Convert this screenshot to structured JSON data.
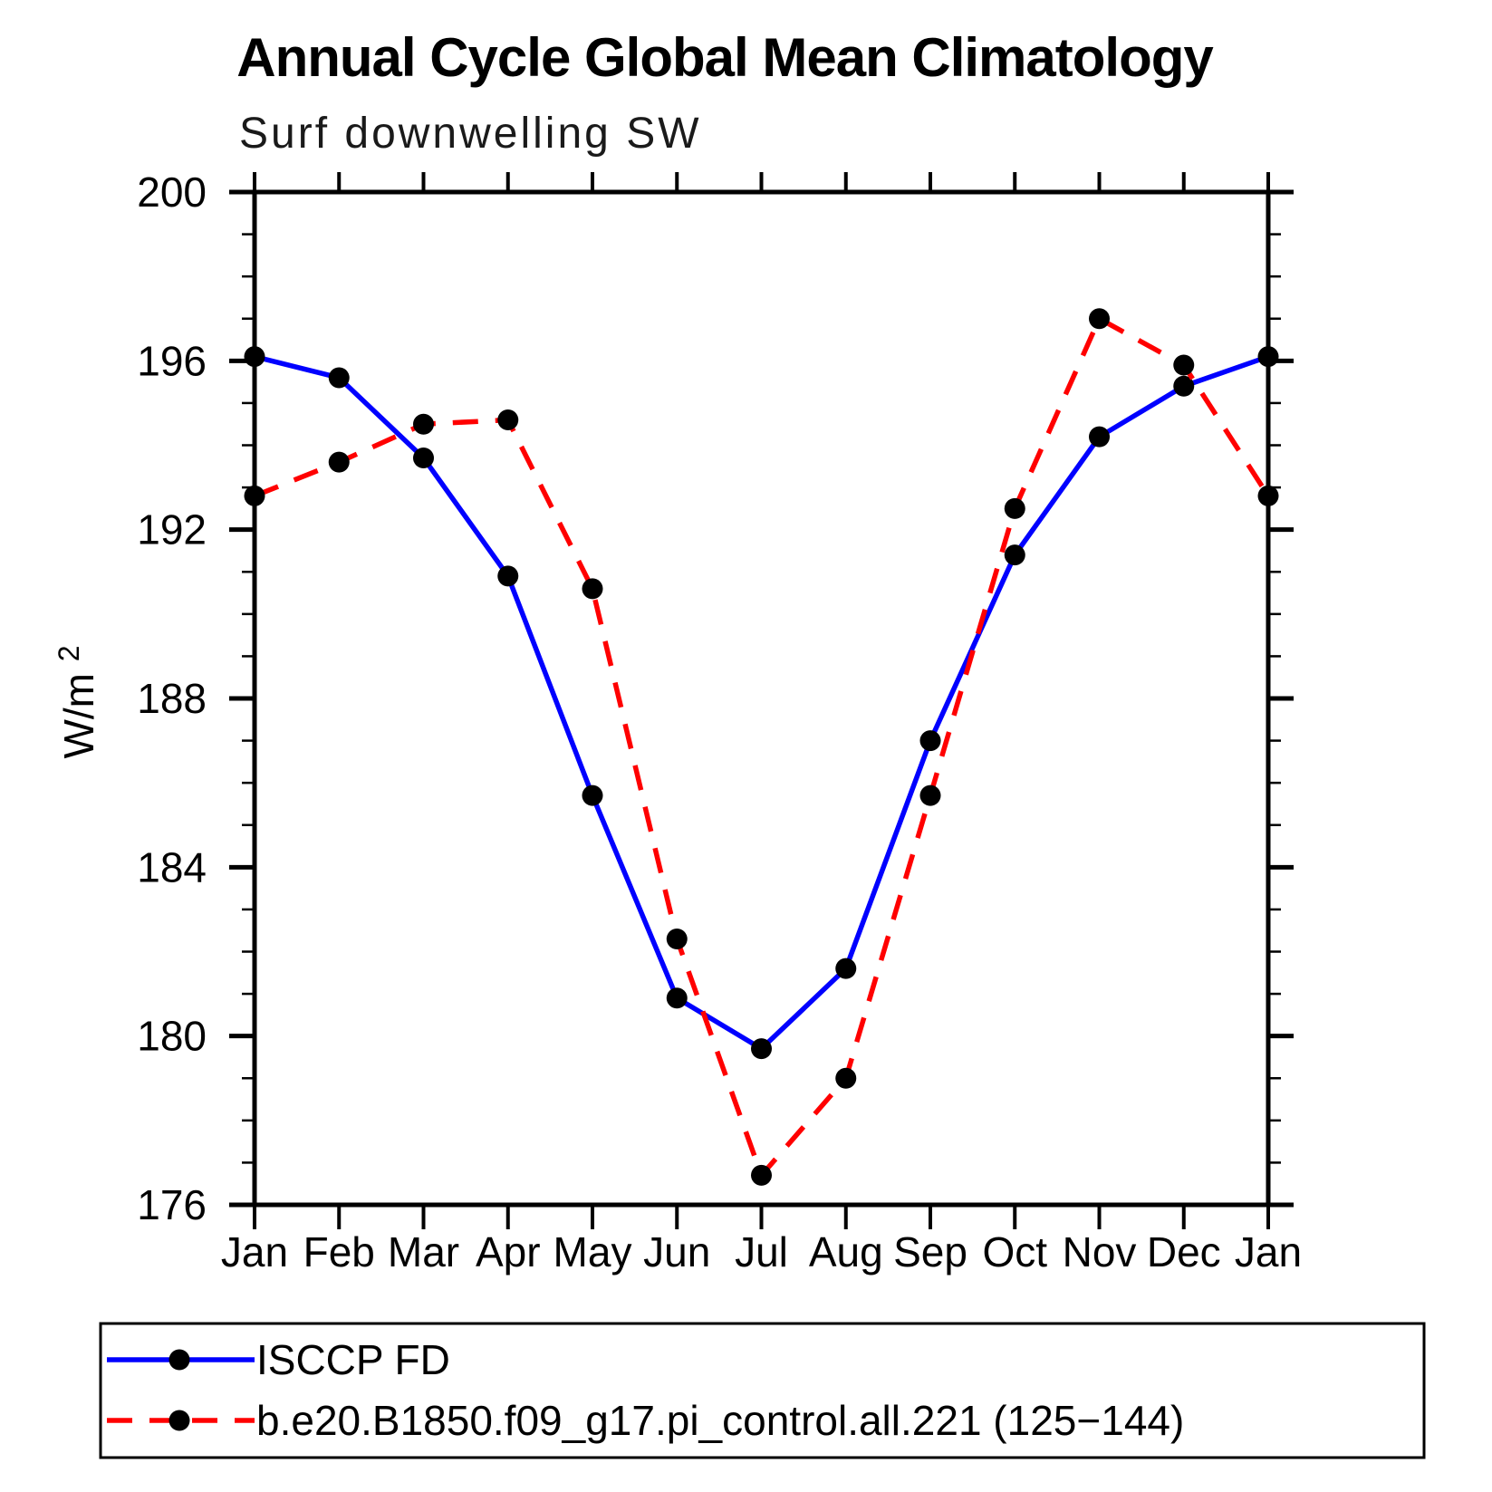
{
  "title": "Annual Cycle Global Mean Climatology",
  "subtitle": "Surf downwelling SW",
  "ylabel_base": "W/m",
  "ylabel_exp": "2",
  "colors": {
    "background": "#ffffff",
    "axis": "#000000",
    "marker": "#000000",
    "series_blue": "#0000ff",
    "series_red": "#ff0000"
  },
  "chart_data": {
    "type": "line",
    "title": "Annual Cycle Global Mean Climatology",
    "subtitle": "Surf downwelling SW",
    "ylabel": "W/m2",
    "x_categories": [
      "Jan",
      "Feb",
      "Mar",
      "Apr",
      "May",
      "Jun",
      "Jul",
      "Aug",
      "Sep",
      "Oct",
      "Nov",
      "Dec",
      "Jan"
    ],
    "ylim": [
      176,
      200
    ],
    "y_major_ticks": [
      176,
      180,
      184,
      188,
      192,
      196,
      200
    ],
    "y_minor_step": 1,
    "grid": "off",
    "legend_position": "bottom",
    "series": [
      {
        "name": "ISCCP FD",
        "color": "#0000ff",
        "line_style": "solid",
        "marker": "filled-circle",
        "marker_color": "#000000",
        "values": [
          196.1,
          195.6,
          193.7,
          190.9,
          185.7,
          180.9,
          179.7,
          181.6,
          187.0,
          191.4,
          194.2,
          195.4,
          196.1
        ]
      },
      {
        "name": "b.e20.B1850.f09_g17.pi_control.all.221 (125−144)",
        "color": "#ff0000",
        "line_style": "dashed",
        "marker": "filled-circle",
        "marker_color": "#000000",
        "values": [
          192.8,
          193.6,
          194.5,
          194.6,
          190.6,
          182.3,
          176.7,
          179.0,
          185.7,
          192.5,
          197.0,
          195.9,
          192.8
        ]
      }
    ]
  }
}
